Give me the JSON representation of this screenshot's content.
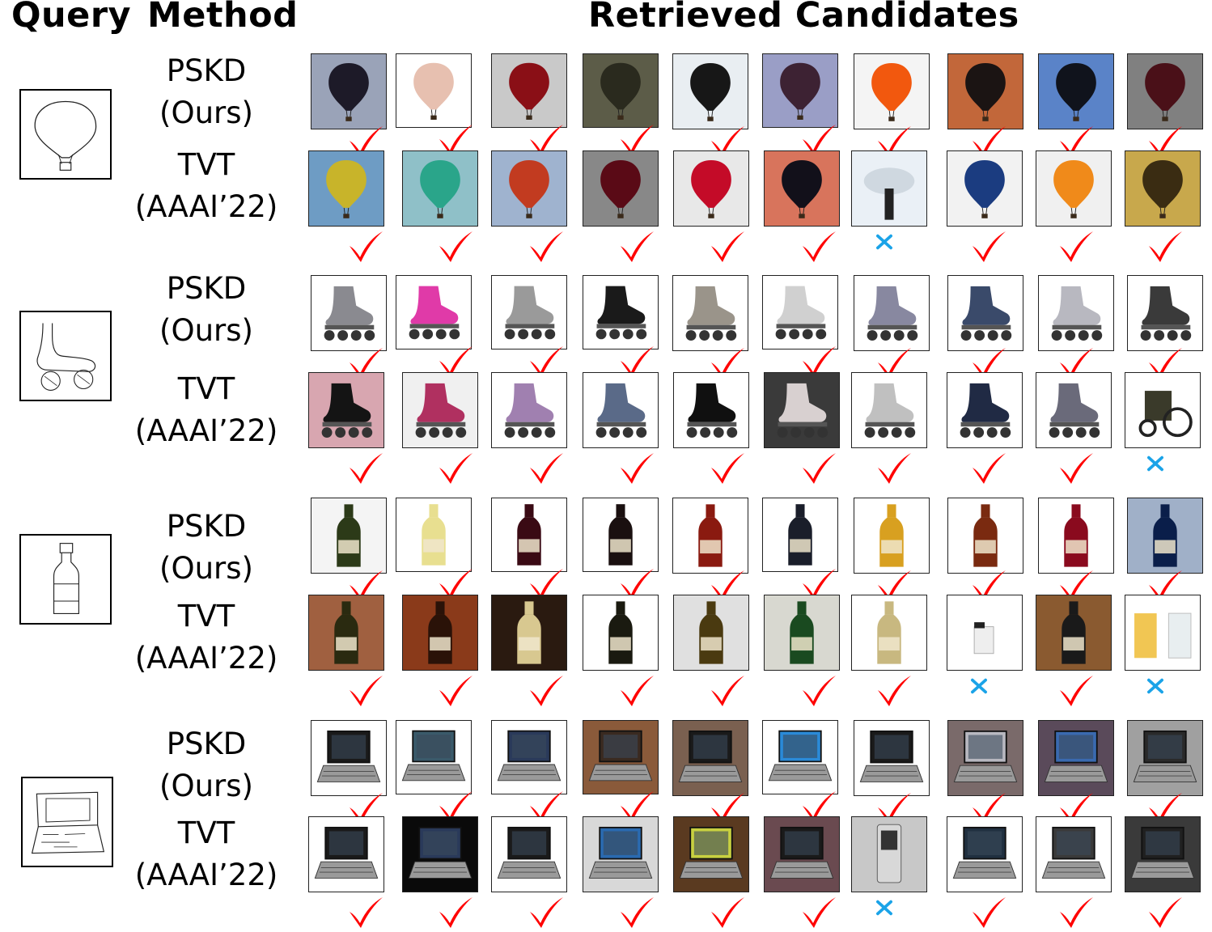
{
  "headers": {
    "query": "Query",
    "method": "Method",
    "retrieved": "Retrieved Candidates"
  },
  "methods": {
    "ours": {
      "name": "PSKD",
      "sub": "(Ours)"
    },
    "baseline": {
      "name": "TVT",
      "sub": "(AAAI’22)"
    }
  },
  "marks": {
    "correct": "checkmark-icon",
    "wrong": "cross-icon"
  },
  "colors": {
    "correct": "#ff0000",
    "wrong": "#1aa3e8"
  },
  "groups": [
    {
      "category": "hot-air-balloon",
      "query_icon": "balloon-sketch-icon",
      "ours": {
        "images": [
          "balloon-photo-icon",
          "balloon-photo-icon",
          "balloon-photo-icon",
          "balloon-photo-icon",
          "balloon-photo-icon",
          "balloon-photo-icon",
          "balloon-photo-icon",
          "balloon-photo-icon",
          "balloon-photo-icon",
          "balloon-photo-icon"
        ],
        "results": [
          true,
          true,
          true,
          true,
          true,
          true,
          true,
          true,
          true,
          true
        ]
      },
      "baseline": {
        "images": [
          "balloon-photo-icon",
          "balloon-photo-icon",
          "balloon-photo-icon",
          "balloon-photo-icon",
          "balloon-photo-icon",
          "balloon-photo-icon",
          "lamp-photo-icon",
          "balloon-photo-icon",
          "balloon-photo-icon",
          "balloon-photo-icon"
        ],
        "results": [
          true,
          true,
          true,
          true,
          true,
          true,
          false,
          true,
          true,
          true
        ]
      }
    },
    {
      "category": "inline-skate",
      "query_icon": "skate-sketch-icon",
      "ours": {
        "images": [
          "skate-photo-icon",
          "skate-photo-icon",
          "skate-photo-icon",
          "skate-photo-icon",
          "skate-photo-icon",
          "skate-photo-icon",
          "skate-photo-icon",
          "skate-photo-icon",
          "skate-photo-icon",
          "skate-photo-icon"
        ],
        "results": [
          true,
          true,
          true,
          true,
          true,
          true,
          true,
          true,
          true,
          true
        ]
      },
      "baseline": {
        "images": [
          "skate-photo-icon",
          "skate-photo-icon",
          "skate-photo-icon",
          "skate-photo-icon",
          "skate-photo-icon",
          "skate-photo-icon",
          "skate-photo-icon",
          "skate-photo-icon",
          "skate-photo-icon",
          "machine-photo-icon"
        ],
        "results": [
          true,
          true,
          true,
          true,
          true,
          true,
          true,
          true,
          true,
          false
        ]
      }
    },
    {
      "category": "bottle",
      "query_icon": "bottle-sketch-icon",
      "ours": {
        "images": [
          "bottle-photo-icon",
          "bottle-photo-icon",
          "bottle-photo-icon",
          "bottle-photo-icon",
          "bottle-photo-icon",
          "bottle-photo-icon",
          "bottle-photo-icon",
          "bottle-photo-icon",
          "bottle-photo-icon",
          "bottle-photo-icon"
        ],
        "results": [
          true,
          true,
          true,
          true,
          true,
          true,
          true,
          true,
          true,
          true
        ]
      },
      "baseline": {
        "images": [
          "bottle-photo-icon",
          "bottle-photo-icon",
          "bottle-photo-icon",
          "bottle-photo-icon",
          "bottle-photo-icon",
          "bottle-photo-icon",
          "bottle-photo-icon",
          "lighter-photo-icon",
          "bottle-photo-icon",
          "glasses-photo-icon"
        ],
        "results": [
          true,
          true,
          true,
          true,
          true,
          true,
          true,
          false,
          true,
          false
        ]
      }
    },
    {
      "category": "laptop",
      "query_icon": "laptop-sketch-icon",
      "ours": {
        "images": [
          "laptop-photo-icon",
          "laptop-photo-icon",
          "laptop-photo-icon",
          "laptop-photo-icon",
          "laptop-photo-icon",
          "laptop-photo-icon",
          "laptop-photo-icon",
          "laptop-photo-icon",
          "laptop-photo-icon",
          "laptop-photo-icon"
        ],
        "results": [
          true,
          true,
          true,
          true,
          true,
          true,
          true,
          true,
          true,
          true
        ]
      },
      "baseline": {
        "images": [
          "laptop-photo-icon",
          "laptop-photo-icon",
          "laptop-photo-icon",
          "laptop-photo-icon",
          "laptop-photo-icon",
          "laptop-photo-icon",
          "phone-photo-icon",
          "laptop-photo-icon",
          "laptop-photo-icon",
          "laptop-photo-icon"
        ],
        "results": [
          true,
          true,
          true,
          true,
          true,
          true,
          false,
          true,
          true,
          true
        ]
      }
    }
  ]
}
